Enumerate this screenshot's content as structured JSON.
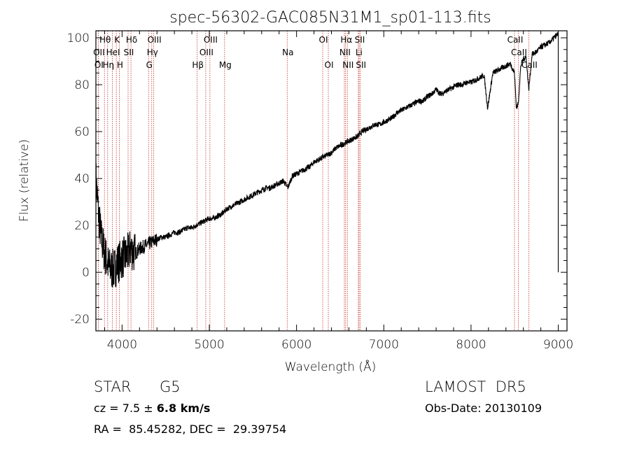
{
  "chart_data": {
    "type": "line",
    "title": "spec-56302-GAC085N31M1_sp01-113.fits",
    "xlabel": "Wavelength (Å)",
    "ylabel": "Flux (relative)",
    "xlim": [
      3700,
      9100
    ],
    "ylim": [
      -25,
      103
    ],
    "xticks": [
      4000,
      5000,
      6000,
      7000,
      8000,
      9000
    ],
    "yticks": [
      -20,
      0,
      20,
      40,
      60,
      80,
      100
    ],
    "grid": false,
    "line_color": "#000000",
    "marker_color": "#c0392b",
    "series": [
      {
        "x": [
          3700,
          3730,
          3760,
          3800,
          3850,
          3900,
          3950,
          4000,
          4050,
          4100,
          4150,
          4200,
          4250,
          4300,
          4350,
          4400,
          4450,
          4500,
          4550,
          4600,
          4650,
          4700,
          4750,
          4800,
          4850,
          4900,
          4950,
          5000,
          5050,
          5100,
          5150,
          5200,
          5250,
          5300,
          5350,
          5400,
          5450,
          5500,
          5550,
          5600,
          5650,
          5700,
          5750,
          5800,
          5850,
          5900,
          5950,
          6000,
          6050,
          6100,
          6150,
          6200,
          6250,
          6300,
          6350,
          6400,
          6450,
          6500,
          6550,
          6600,
          6650,
          6700,
          6750,
          6800,
          6850,
          6900,
          6950,
          7000,
          7050,
          7100,
          7150,
          7200,
          7250,
          7300,
          7350,
          7400,
          7450,
          7500,
          7550,
          7600,
          7650,
          7700,
          7750,
          7800,
          7850,
          7900,
          7950,
          8000,
          8050,
          8100,
          8150,
          8190,
          8250,
          8300,
          8350,
          8400,
          8450,
          8498,
          8520,
          8542,
          8570,
          8600,
          8630,
          8662,
          8700,
          8750,
          8800,
          8850,
          8900,
          8950,
          8980,
          9000
        ],
        "y": [
          40,
          25,
          15,
          8,
          2,
          1,
          4,
          6,
          7,
          10,
          8,
          10,
          11,
          12,
          13,
          14,
          15,
          15,
          16,
          17,
          17,
          18,
          19,
          19,
          20,
          21,
          22,
          23,
          23,
          24,
          25,
          27,
          28,
          29,
          30,
          31,
          32,
          33,
          34,
          35,
          36,
          36,
          37,
          38,
          39,
          36,
          41,
          42,
          43,
          44,
          45,
          47,
          48,
          49,
          50,
          51,
          53,
          54,
          55,
          56,
          57,
          58,
          60,
          61,
          62,
          63,
          63,
          64,
          65,
          66,
          68,
          69,
          70,
          71,
          72,
          73,
          73,
          75,
          76,
          78,
          76,
          77,
          78,
          79,
          80,
          80,
          81,
          81,
          82,
          83,
          84,
          70,
          85,
          86,
          87,
          88,
          89,
          85,
          70,
          72,
          88,
          91,
          92,
          78,
          93,
          94,
          96,
          97,
          98,
          100,
          101,
          102
        ]
      }
    ],
    "lines_top": [
      {
        "label": "Hθ",
        "x": 3798,
        "row": 1
      },
      {
        "label": "K",
        "x": 3934,
        "row": 1
      },
      {
        "label": "Hδ",
        "x": 4102,
        "row": 1
      },
      {
        "label": "OIII",
        "x": 4363,
        "row": 1
      },
      {
        "label": "OIII",
        "x": 5007,
        "row": 1
      },
      {
        "label": "OI",
        "x": 6300,
        "row": 1
      },
      {
        "label": "Hα",
        "x": 6563,
        "row": 1
      },
      {
        "label": "SII",
        "x": 6717,
        "row": 1
      },
      {
        "label": "CaII",
        "x": 8498,
        "row": 1
      },
      {
        "label": "OII",
        "x": 3727,
        "row": 2
      },
      {
        "label": "HeI",
        "x": 3889,
        "row": 2
      },
      {
        "label": "SII",
        "x": 4069,
        "row": 2
      },
      {
        "label": "Hγ",
        "x": 4340,
        "row": 2
      },
      {
        "label": "OIII",
        "x": 4959,
        "row": 2
      },
      {
        "label": "NII",
        "x": 6548,
        "row": 2
      },
      {
        "label": "Li",
        "x": 6708,
        "row": 2
      },
      {
        "label": "CaII",
        "x": 8542,
        "row": 2
      },
      {
        "label": "OI",
        "x": 3727,
        "row": 3
      },
      {
        "label": "Hη",
        "x": 3835,
        "row": 3
      },
      {
        "label": "H",
        "x": 3968,
        "row": 3
      },
      {
        "label": "G",
        "x": 4304,
        "row": 3
      },
      {
        "label": "Hβ",
        "x": 4861,
        "row": 3
      },
      {
        "label": "Mg",
        "x": 5175,
        "row": 3
      },
      {
        "label": "Na",
        "x": 5893,
        "row": 2
      },
      {
        "label": "OI",
        "x": 6364,
        "row": 3
      },
      {
        "label": "NII",
        "x": 6583,
        "row": 3
      },
      {
        "label": "SII",
        "x": 6731,
        "row": 3
      },
      {
        "label": "CaII",
        "x": 8662,
        "row": 3
      }
    ]
  },
  "info": {
    "class_label": "STAR",
    "subclass": "G5",
    "survey": "LAMOST  DR5",
    "cz_prefix": "cz = 7.5 ± ",
    "cz_error": "6.8",
    "cz_unit": " km/s",
    "obs_date": "Obs-Date: 20130109",
    "coords": "RA =  85.45282, DEC =  29.39754"
  }
}
